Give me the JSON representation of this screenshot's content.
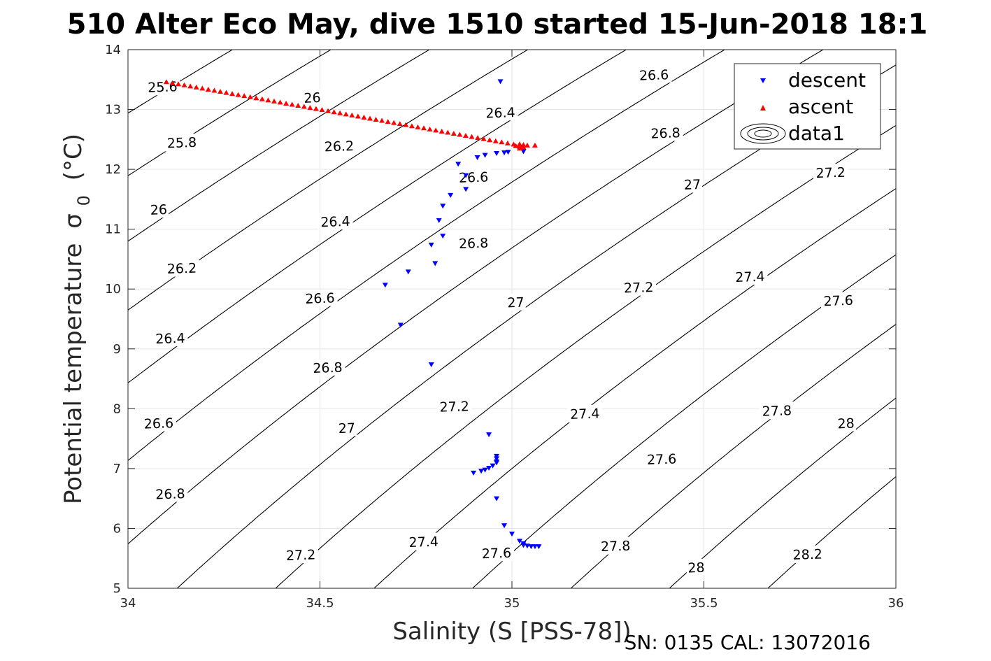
{
  "chart_data": {
    "type": "scatter",
    "title": "510 Alter Eco May, dive 1510 started 15-Jun-2018 18:1",
    "xlabel": "Salinity (S [PSS-78])",
    "ylabel": "Potential temperature",
    "ylabel_symbol": "σ",
    "ylabel_subscript": "0",
    "ylabel_unit": "(°C)",
    "footer": "SN: 0135  CAL: 13072016",
    "xlim": [
      34,
      36
    ],
    "ylim": [
      5,
      14
    ],
    "xticks": [
      "34",
      "34.5",
      "35",
      "35.5",
      "36"
    ],
    "yticks": [
      "5",
      "6",
      "7",
      "8",
      "9",
      "10",
      "11",
      "12",
      "13",
      "14"
    ],
    "grid": true,
    "legend_position": "top-right",
    "legend": [
      "descent",
      "ascent",
      "data1"
    ],
    "colors": {
      "descent": "#0000ff",
      "ascent": "#ff0000",
      "contour": "#000000"
    },
    "contours": {
      "isopycnal_levels": [
        25.6,
        25.8,
        26,
        26.2,
        26.4,
        26.6,
        26.8,
        27,
        27.2,
        27.4,
        27.6,
        27.8,
        28,
        28.2
      ],
      "labels": [
        {
          "text": "25.6",
          "s": 34.09,
          "t": 13.38
        },
        {
          "text": "25.8",
          "s": 34.14,
          "t": 12.45
        },
        {
          "text": "26",
          "s": 34.08,
          "t": 11.33
        },
        {
          "text": "26.2",
          "s": 34.14,
          "t": 10.35
        },
        {
          "text": "26.4",
          "s": 34.11,
          "t": 9.18
        },
        {
          "text": "26.6",
          "s": 34.08,
          "t": 7.76
        },
        {
          "text": "26.8",
          "s": 34.11,
          "t": 6.58
        },
        {
          "text": "26",
          "s": 34.48,
          "t": 13.2
        },
        {
          "text": "26.2",
          "s": 34.55,
          "t": 12.39
        },
        {
          "text": "26.4",
          "s": 34.54,
          "t": 11.13
        },
        {
          "text": "26.6",
          "s": 34.5,
          "t": 9.85
        },
        {
          "text": "26.8",
          "s": 34.52,
          "t": 8.69
        },
        {
          "text": "27",
          "s": 34.57,
          "t": 7.68
        },
        {
          "text": "27.2",
          "s": 34.45,
          "t": 5.56
        },
        {
          "text": "26.4",
          "s": 34.97,
          "t": 12.95
        },
        {
          "text": "26.6",
          "s": 34.9,
          "t": 11.87
        },
        {
          "text": "26.8",
          "s": 34.9,
          "t": 10.77
        },
        {
          "text": "27",
          "s": 35.01,
          "t": 9.78
        },
        {
          "text": "27.2",
          "s": 34.85,
          "t": 8.04
        },
        {
          "text": "27.4",
          "s": 34.77,
          "t": 5.78
        },
        {
          "text": "27.6",
          "s": 34.96,
          "t": 5.59
        },
        {
          "text": "26.6",
          "s": 35.37,
          "t": 13.58
        },
        {
          "text": "26.8",
          "s": 35.4,
          "t": 12.61
        },
        {
          "text": "27",
          "s": 35.47,
          "t": 11.75
        },
        {
          "text": "27.2",
          "s": 35.33,
          "t": 10.03
        },
        {
          "text": "27.4",
          "s": 35.19,
          "t": 7.92
        },
        {
          "text": "27.6",
          "s": 35.39,
          "t": 7.16
        },
        {
          "text": "27.8",
          "s": 35.27,
          "t": 5.71
        },
        {
          "text": "28",
          "s": 35.48,
          "t": 5.35
        },
        {
          "text": "27.2",
          "s": 35.83,
          "t": 11.95
        },
        {
          "text": "27.4",
          "s": 35.62,
          "t": 10.21
        },
        {
          "text": "27.6",
          "s": 35.85,
          "t": 9.81
        },
        {
          "text": "27.8",
          "s": 35.69,
          "t": 7.97
        },
        {
          "text": "28",
          "s": 35.87,
          "t": 7.76
        },
        {
          "text": "28.2",
          "s": 35.77,
          "t": 5.57
        }
      ]
    },
    "series": [
      {
        "name": "descent",
        "marker": "triangle-down",
        "points": [
          [
            34.97,
            13.47
          ],
          [
            35.03,
            12.3
          ],
          [
            34.99,
            12.29
          ],
          [
            34.98,
            12.28
          ],
          [
            34.96,
            12.27
          ],
          [
            34.93,
            12.24
          ],
          [
            34.91,
            12.2
          ],
          [
            34.86,
            12.09
          ],
          [
            34.88,
            11.9
          ],
          [
            34.88,
            11.67
          ],
          [
            34.84,
            11.57
          ],
          [
            34.82,
            11.39
          ],
          [
            34.81,
            11.15
          ],
          [
            34.82,
            10.89
          ],
          [
            34.79,
            10.74
          ],
          [
            34.8,
            10.43
          ],
          [
            34.73,
            10.29
          ],
          [
            34.67,
            10.07
          ],
          [
            34.71,
            9.4
          ],
          [
            34.79,
            8.74
          ],
          [
            34.94,
            7.57
          ],
          [
            34.96,
            7.21
          ],
          [
            34.96,
            7.17
          ],
          [
            34.96,
            7.12
          ],
          [
            34.96,
            7.1
          ],
          [
            34.95,
            7.05
          ],
          [
            34.94,
            7.01
          ],
          [
            34.93,
            6.98
          ],
          [
            34.92,
            6.96
          ],
          [
            34.9,
            6.93
          ],
          [
            34.96,
            6.5
          ],
          [
            34.98,
            6.05
          ],
          [
            35.0,
            5.91
          ],
          [
            35.02,
            5.79
          ],
          [
            35.03,
            5.75
          ],
          [
            35.03,
            5.72
          ],
          [
            35.04,
            5.71
          ],
          [
            35.05,
            5.7
          ],
          [
            35.06,
            5.7
          ],
          [
            35.07,
            5.7
          ]
        ]
      },
      {
        "name": "ascent",
        "marker": "triangle-up",
        "start": [
          34.1,
          13.46
        ],
        "end": [
          35.02,
          12.4
        ],
        "count": 60,
        "extra_points": [
          [
            35.02,
            12.42
          ],
          [
            35.02,
            12.38
          ],
          [
            35.03,
            12.41
          ],
          [
            35.03,
            12.37
          ],
          [
            35.04,
            12.4
          ],
          [
            35.02,
            12.35
          ],
          [
            35.01,
            12.39
          ],
          [
            35.06,
            12.4
          ]
        ]
      }
    ]
  }
}
